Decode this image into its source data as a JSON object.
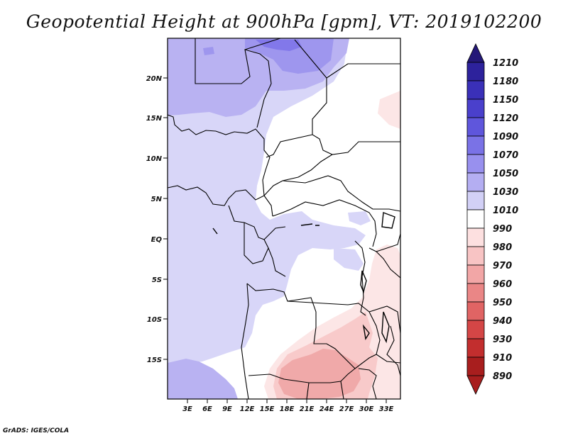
{
  "title": "Geopotential Height at 900hPa [gpm], VT: 2019102200",
  "credit": "GrADS: IGES/COLA",
  "map": {
    "lat_labels": [
      "20N",
      "15N",
      "10N",
      "5N",
      "EQ",
      "5S",
      "10S",
      "15S"
    ],
    "lon_labels": [
      "3E",
      "6E",
      "9E",
      "12E",
      "15E",
      "18E",
      "21E",
      "24E",
      "27E",
      "30E",
      "33E"
    ]
  },
  "colorbar": {
    "levels": [
      "1210",
      "1180",
      "1150",
      "1120",
      "1090",
      "1070",
      "1050",
      "1030",
      "1010",
      "990",
      "980",
      "970",
      "960",
      "950",
      "940",
      "930",
      "910",
      "890"
    ],
    "colors": [
      "#241878",
      "#2d229c",
      "#3a30b8",
      "#4a40cc",
      "#5f56dc",
      "#7a72e6",
      "#9890ee",
      "#b4aef2",
      "#d2d0f6",
      "#ffffff",
      "#fde0e0",
      "#f8c4c4",
      "#f2a6a6",
      "#ea8686",
      "#e06464",
      "#d44646",
      "#c22e2e",
      "#a81e1e"
    ]
  },
  "colors": {
    "band_1010_1030": "#d8d6f8",
    "band_1030_1050": "#b9b2f2",
    "band_1050_1070": "#9e96ee",
    "band_1070_1090": "#8278ea",
    "band_990_1010": "#ffffff",
    "band_980_990": "#fce6e6",
    "band_970_980": "#f8caca",
    "band_960_970": "#f0a9a9",
    "border": "#000000"
  }
}
